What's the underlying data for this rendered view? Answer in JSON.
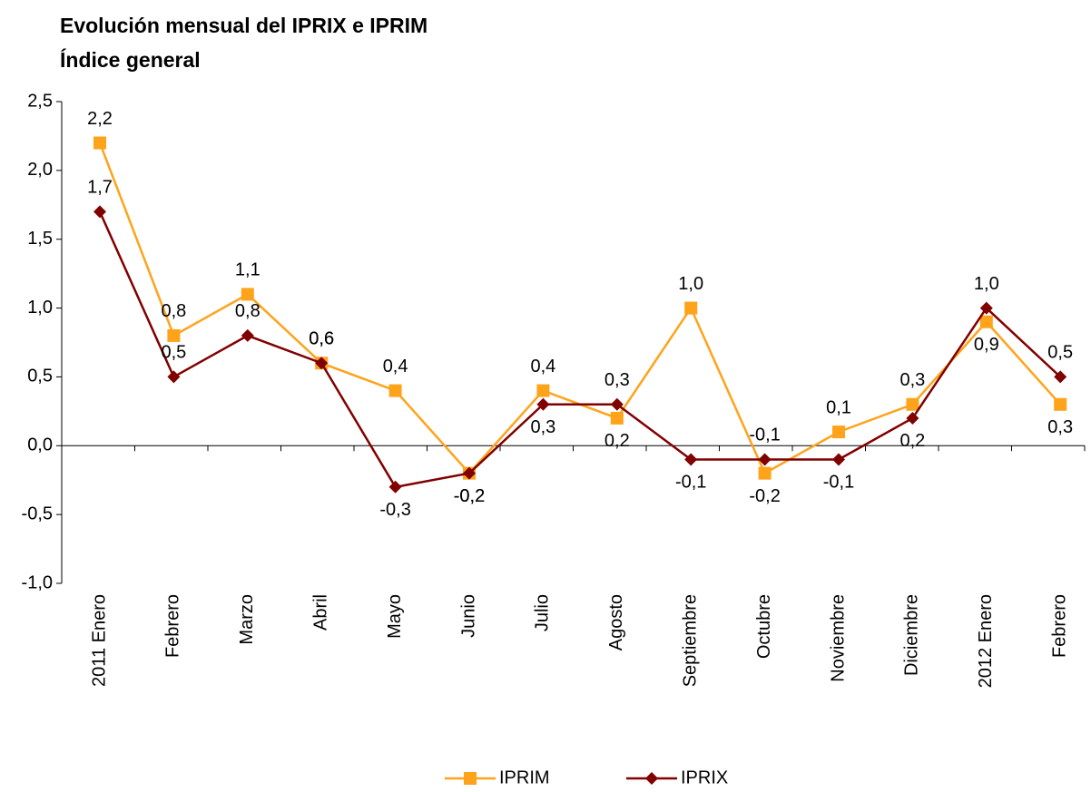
{
  "chart_data": {
    "type": "line",
    "title": "Evolución mensual del IPRIX e IPRIM",
    "subtitle": "Índice general",
    "categories": [
      "2011 Enero",
      "Febrero",
      "Marzo",
      "Abril",
      "Mayo",
      "Junio",
      "Julio",
      "Agosto",
      "Septiembre",
      "Octubre",
      "Noviembre",
      "Diciembre",
      "2012 Enero",
      "Febrero"
    ],
    "series": [
      {
        "name": "IPRIM",
        "color": "#ffa31a",
        "marker": "square",
        "values": [
          2.2,
          0.8,
          1.1,
          0.6,
          0.4,
          -0.2,
          0.4,
          0.2,
          1.0,
          -0.2,
          0.1,
          0.3,
          0.9,
          0.3
        ],
        "value_labels": [
          "2,2",
          "0,8",
          "1,1",
          "0,6",
          "0,4",
          "-0,2",
          "0,4",
          "0,2",
          "1,0",
          "-0,2",
          "0,1",
          "0,3",
          "0,9",
          "0,3"
        ]
      },
      {
        "name": "IPRIX",
        "color": "#800000",
        "marker": "diamond",
        "values": [
          1.7,
          0.5,
          0.8,
          0.6,
          -0.3,
          -0.2,
          0.3,
          0.3,
          -0.1,
          -0.1,
          -0.1,
          0.2,
          1.0,
          0.5
        ],
        "value_labels": [
          "1,7",
          "0,5",
          "0,8",
          "0,6",
          "-0,3",
          "-0,2",
          "0,3",
          "0,3",
          "-0,1",
          "-0,1",
          "-0,1",
          "0,2",
          "1,0",
          "0,5"
        ]
      }
    ],
    "ylim": [
      -1.0,
      2.5
    ],
    "yticks": [
      {
        "value": -1.0,
        "label": "-1,0"
      },
      {
        "value": -0.5,
        "label": "-0,5"
      },
      {
        "value": 0,
        "label": "0,0"
      },
      {
        "value": 0.5,
        "label": "0,5"
      },
      {
        "value": 1.0,
        "label": "1,0"
      },
      {
        "value": 1.5,
        "label": "1,5"
      },
      {
        "value": 2.0,
        "label": "2,0"
      },
      {
        "value": 2.5,
        "label": "2,5"
      }
    ],
    "grid": false,
    "legend": "bottom"
  }
}
